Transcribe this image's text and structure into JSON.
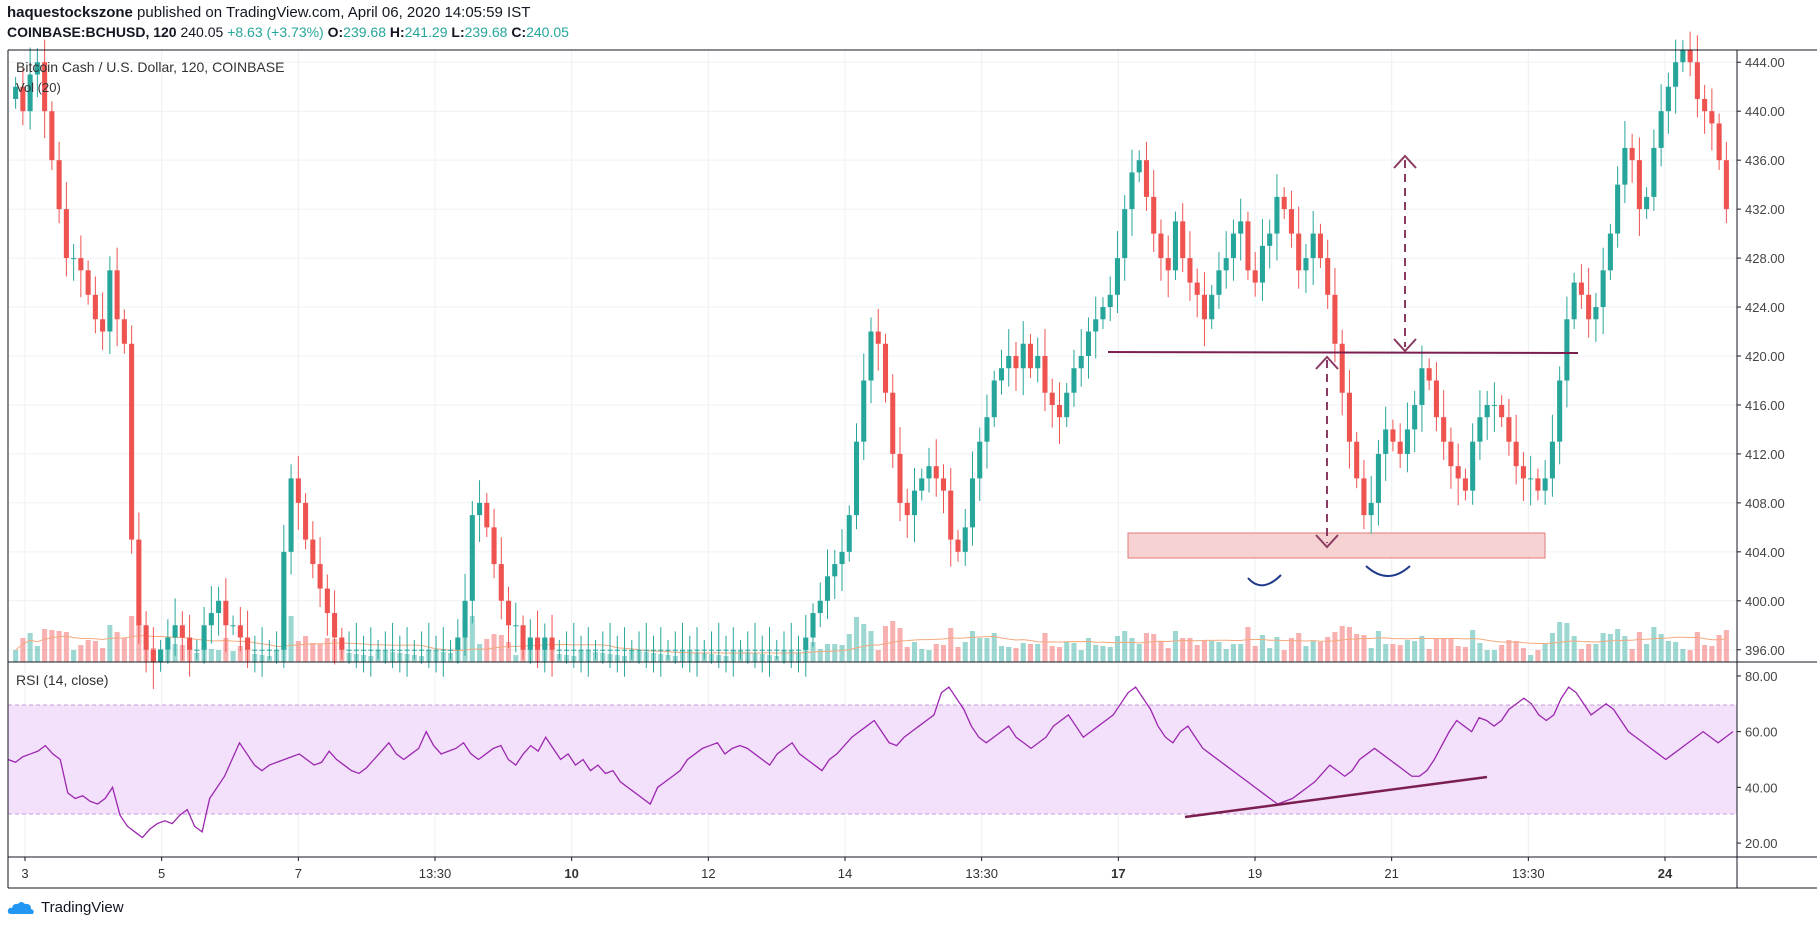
{
  "header": {
    "author": "haquestockszone",
    "published": "published on TradingView.com, April 06, 2020 14:05:59 IST",
    "symbol": "COINBASE:BCHUSD, 120",
    "last": "240.05",
    "change": "+8.63 (+3.73%)",
    "o_label": "O:",
    "o_value": "239.68",
    "h_label": "H:",
    "h_value": "241.29",
    "l_label": "L:",
    "l_value": "239.68",
    "c_label": "C:",
    "c_value": "240.05"
  },
  "footer": {
    "brand": "TradingView"
  },
  "colors": {
    "up": "#26a69a",
    "down": "#ef5350",
    "rsi_line": "#9c27b0",
    "rsi_band": "#f3e0fb",
    "annotation": "#7b1e50",
    "zone": "#f6d2d2"
  },
  "chart_data": [
    {
      "type": "candlestick",
      "title": "Bitcoin Cash / U.S. Dollar, 120, COINBASE",
      "indicator_label": "Vol (20)",
      "ylim": [
        395,
        445
      ],
      "y_ticks": [
        "444.00",
        "440.00",
        "436.00",
        "432.00",
        "428.00",
        "424.00",
        "420.00",
        "416.00",
        "412.00",
        "408.00",
        "404.00",
        "400.00",
        "396.00"
      ],
      "x_ticks": [
        {
          "label": "3",
          "bold": false
        },
        {
          "label": "5",
          "bold": false
        },
        {
          "label": "7",
          "bold": false
        },
        {
          "label": "13:30",
          "bold": false
        },
        {
          "label": "10",
          "bold": true
        },
        {
          "label": "12",
          "bold": false
        },
        {
          "label": "14",
          "bold": false
        },
        {
          "label": "13:30",
          "bold": false
        },
        {
          "label": "17",
          "bold": true
        },
        {
          "label": "19",
          "bold": false
        },
        {
          "label": "21",
          "bold": false
        },
        {
          "label": "13:30",
          "bold": false
        },
        {
          "label": "24",
          "bold": true
        }
      ],
      "closes": [
        442,
        440,
        443,
        444,
        440,
        436,
        432,
        428,
        428,
        427,
        425,
        423,
        422,
        427,
        423,
        421,
        405,
        398,
        396,
        395,
        396,
        397,
        398,
        397,
        396,
        396,
        398,
        399,
        400,
        398,
        398,
        397,
        396,
        396,
        396,
        396,
        396,
        404,
        410,
        408,
        405,
        403,
        401,
        399,
        397,
        396,
        396,
        396,
        396,
        396,
        396,
        396,
        396,
        396,
        396,
        396,
        396,
        396,
        396,
        396,
        396,
        397,
        400,
        407,
        408,
        406,
        403,
        400,
        398,
        398,
        396,
        397,
        396,
        397,
        396,
        396,
        396,
        396,
        396,
        396,
        396,
        396,
        396,
        396,
        396,
        396,
        396,
        396,
        396,
        396,
        396,
        396,
        396,
        396,
        396,
        396,
        396,
        396,
        396,
        396,
        396,
        396,
        396,
        396,
        396,
        396,
        396,
        396,
        396,
        397,
        399,
        400,
        402,
        403,
        404,
        407,
        413,
        418,
        422,
        421,
        417,
        412,
        408,
        407,
        409,
        410,
        411,
        410,
        409,
        405,
        404,
        406,
        410,
        413,
        415,
        418,
        419,
        420,
        419,
        421,
        419,
        420,
        417,
        416,
        415,
        417,
        419,
        420,
        422,
        423,
        424,
        425,
        428,
        432,
        435,
        436,
        433,
        430,
        428,
        427,
        431,
        428,
        426,
        425,
        423,
        425,
        427,
        428,
        430,
        431,
        427,
        426,
        429,
        430,
        433,
        432,
        430,
        427,
        428,
        430,
        428,
        425,
        421,
        417,
        413,
        410,
        407,
        408,
        412,
        414,
        413,
        412,
        414,
        416,
        419,
        418,
        415,
        413,
        411,
        410,
        409,
        413,
        415,
        416,
        416,
        415,
        413,
        411,
        410,
        410,
        409,
        410,
        413,
        418,
        423,
        426,
        425,
        423,
        424,
        427,
        430,
        434,
        437,
        436,
        432,
        433,
        437,
        440,
        442,
        444,
        445,
        444,
        441,
        440,
        439,
        436,
        432
      ],
      "annotations": {
        "neckline_level": 420.2,
        "support_zone": [
          403.6,
          405.5
        ],
        "measured_move_arrows": 2,
        "bottoms": 2
      }
    },
    {
      "type": "line",
      "title": "RSI (14, close)",
      "ylim": [
        15,
        85
      ],
      "y_ticks": [
        "80.00",
        "60.00",
        "40.00",
        "20.00"
      ],
      "band": [
        30,
        70
      ],
      "values": [
        50,
        49,
        51,
        52,
        53,
        55,
        52,
        50,
        38,
        36,
        37,
        35,
        34,
        36,
        40,
        30,
        26,
        24,
        22,
        25,
        27,
        28,
        27,
        30,
        32,
        26,
        24,
        36,
        40,
        44,
        50,
        56,
        52,
        48,
        46,
        48,
        49,
        50,
        51,
        52,
        50,
        48,
        49,
        53,
        50,
        48,
        46,
        45,
        47,
        50,
        53,
        56,
        52,
        50,
        52,
        54,
        60,
        55,
        52,
        53,
        54,
        56,
        52,
        50,
        52,
        54,
        55,
        50,
        48,
        52,
        55,
        53,
        58,
        54,
        50,
        52,
        48,
        50,
        46,
        48,
        45,
        46,
        42,
        40,
        38,
        36,
        34,
        40,
        42,
        44,
        46,
        50,
        52,
        54,
        55,
        56,
        52,
        54,
        55,
        54,
        52,
        50,
        48,
        52,
        54,
        56,
        52,
        50,
        48,
        46,
        50,
        52,
        55,
        58,
        60,
        62,
        64,
        60,
        56,
        55,
        58,
        60,
        62,
        64,
        66,
        74,
        76,
        72,
        68,
        62,
        58,
        56,
        58,
        60,
        62,
        58,
        56,
        54,
        56,
        58,
        62,
        64,
        66,
        62,
        58,
        60,
        62,
        64,
        66,
        70,
        74,
        76,
        72,
        68,
        62,
        58,
        56,
        60,
        62,
        58,
        54,
        52,
        50,
        48,
        46,
        44,
        42,
        40,
        38,
        36,
        34,
        35,
        36,
        38,
        40,
        42,
        45,
        48,
        46,
        44,
        46,
        50,
        52,
        54,
        52,
        50,
        48,
        46,
        44,
        44,
        46,
        50,
        55,
        60,
        64,
        62,
        60,
        65,
        64,
        62,
        64,
        68,
        70,
        72,
        70,
        66,
        64,
        66,
        72,
        76,
        74,
        70,
        66,
        68,
        70,
        68,
        64,
        60,
        58,
        56,
        54,
        52,
        50,
        52,
        54,
        56,
        58,
        60,
        58,
        56,
        58,
        60
      ]
    }
  ]
}
